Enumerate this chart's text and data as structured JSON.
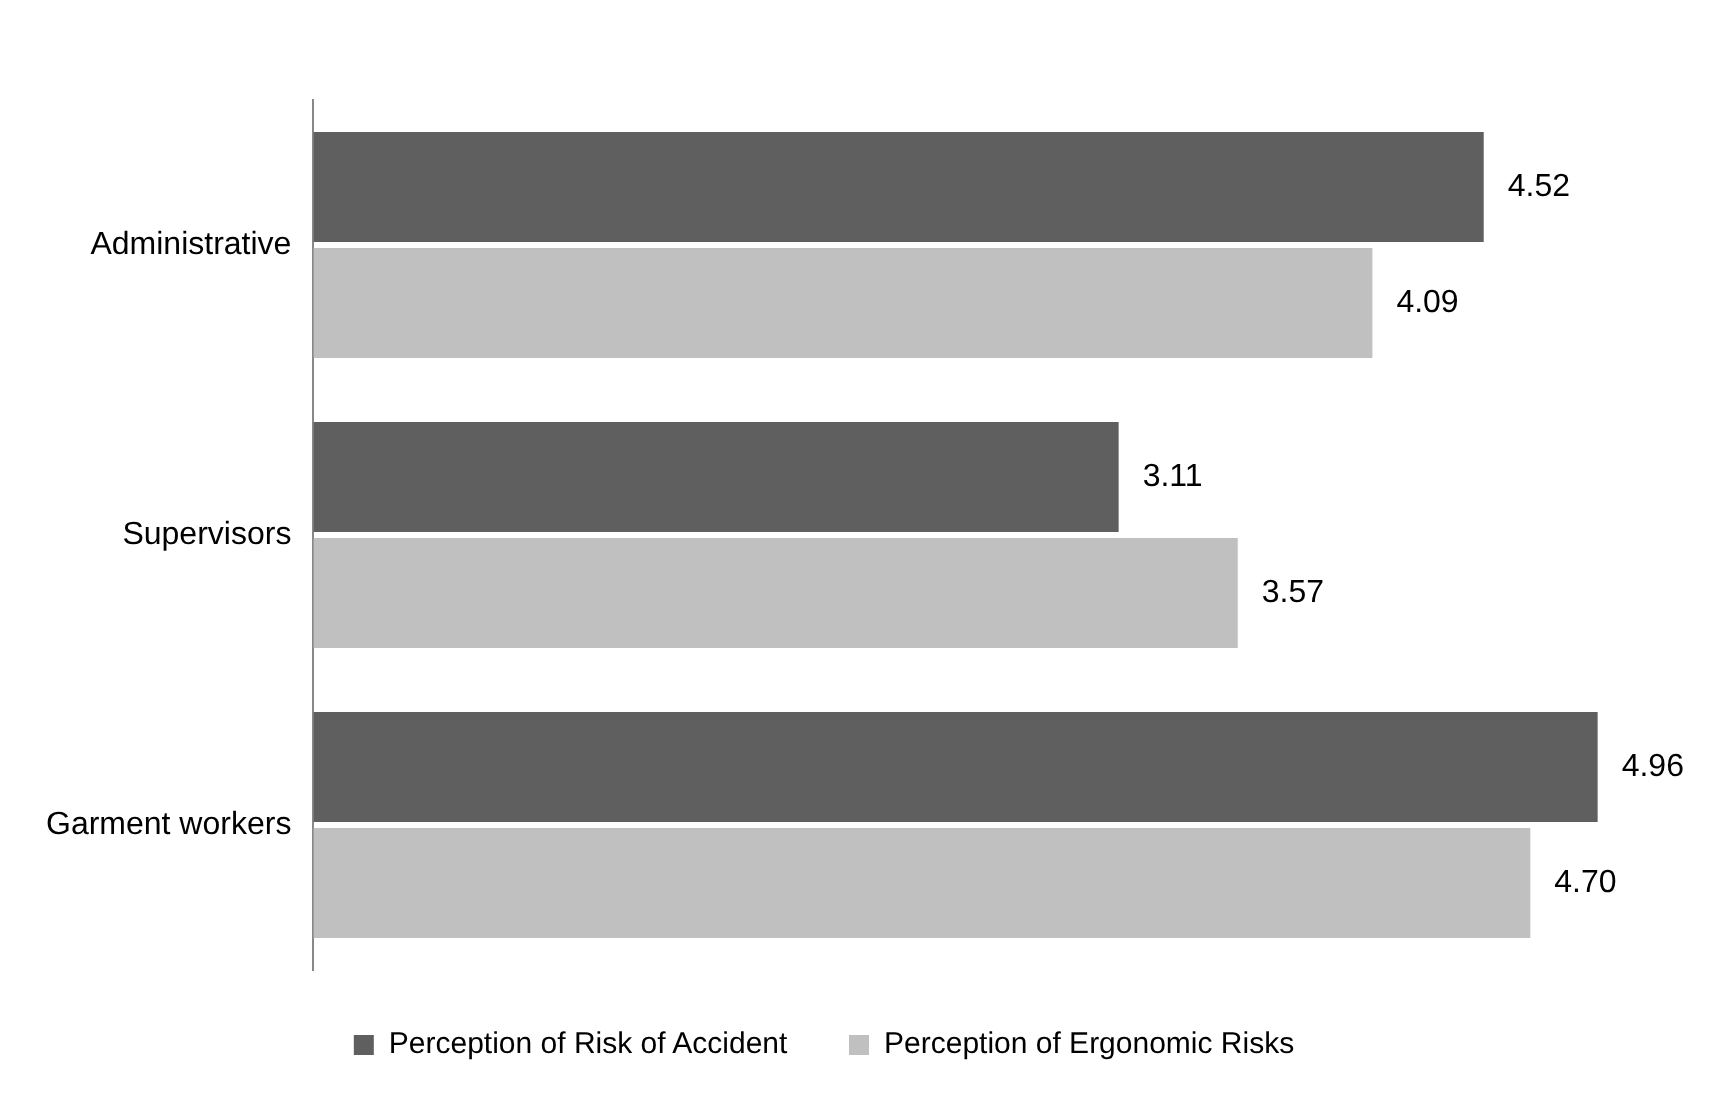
{
  "chart_data": {
    "type": "bar",
    "orientation": "horizontal",
    "categories": [
      "Administrative",
      "Supervisors",
      "Garment workers"
    ],
    "series": [
      {
        "name": "Perception of Risk of Accident",
        "color": "#5f5f5f",
        "values": [
          4.52,
          3.11,
          4.96
        ],
        "value_labels": [
          "4.52",
          "3.11",
          "4.96"
        ]
      },
      {
        "name": "Perception of Ergonomic Risks",
        "color": "#c0c0c0",
        "values": [
          4.09,
          3.57,
          4.7
        ],
        "value_labels": [
          "4.09",
          "3.57",
          "4.70"
        ]
      }
    ],
    "legend": "bottom",
    "tick_labels": "y"
  }
}
